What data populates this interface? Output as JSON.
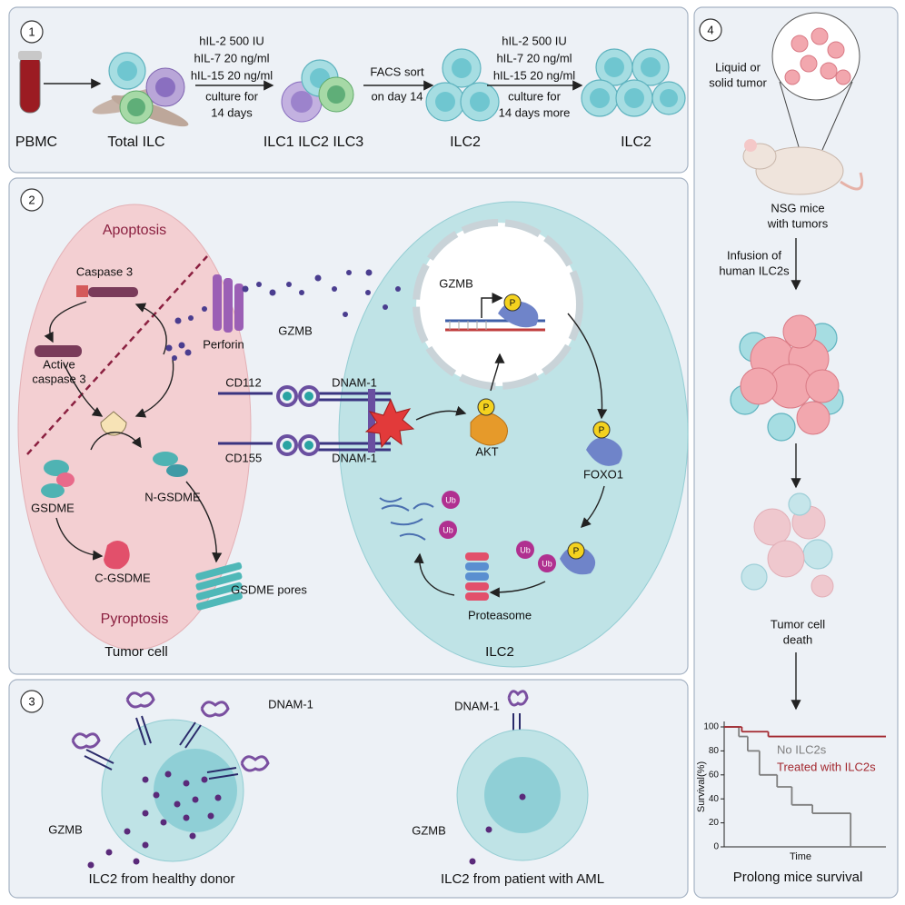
{
  "panel1": {
    "number": "1",
    "labels": [
      "PBMC",
      "Total ILC",
      "ILC1 ILC2 ILC3",
      "ILC2",
      "ILC2"
    ],
    "culture_step": [
      "hIL-2 500 IU",
      "hIL-7 20 ng/ml",
      "hIL-15 20 ng/ml",
      "culture for",
      "14 days"
    ],
    "sort_step": [
      "FACS sort",
      "on day 14"
    ],
    "expansion_step": [
      "hIL-2 500 IU",
      "hIL-7 20 ng/ml",
      "hIL-15 20 ng/ml",
      "culture for",
      "14 days more"
    ]
  },
  "panel2": {
    "number": "2",
    "apoptosis": "Apoptosis",
    "pyroptosis": "Pyroptosis",
    "caspase3": "Caspase 3",
    "active_caspase3": [
      "Active",
      "caspase 3"
    ],
    "gsdme": "GSDME",
    "n_gsdme": "N-GSDME",
    "c_gsdme": "C-GSDME",
    "gsdme_pores": "GSDME pores",
    "perforin": "Perforin",
    "gzmb": "GZMB",
    "cd112": "CD112",
    "cd155": "CD155",
    "dnam1": [
      "DNAM-1",
      "DNAM-1"
    ],
    "gzmb_gene": "GZMB",
    "akt": "AKT",
    "foxo1": "FOXO1",
    "proteasome": "Proteasome",
    "tumor_cell": "Tumor cell",
    "ilc2": "ILC2",
    "phospho": [
      "P",
      "P",
      "P",
      "P"
    ],
    "ubiquitin": [
      "Ub",
      "Ub",
      "Ub",
      "Ub"
    ]
  },
  "panel3": {
    "number": "3",
    "healthy": {
      "dnam1": "DNAM-1",
      "gzmb": "GZMB",
      "caption": "ILC2 from healthy donor"
    },
    "aml": {
      "dnam1": "DNAM-1",
      "gzmb": "GZMB",
      "caption": "ILC2 from patient with AML"
    }
  },
  "panel4": {
    "number": "4",
    "tumor": [
      "Liquid  or",
      "solid tumor"
    ],
    "mice": [
      "NSG mice",
      "with tumors"
    ],
    "infusion": [
      "Infusion of",
      "human ILC2s"
    ],
    "death": [
      "Tumor cell",
      "death"
    ],
    "conclusion": "Prolong mice survival"
  },
  "chart_data": {
    "type": "line",
    "step": true,
    "xlabel": "Time",
    "ylabel": "Survival(%)",
    "xlim": [
      0,
      11
    ],
    "ylim": [
      0,
      100
    ],
    "yticks": [
      0,
      20,
      40,
      60,
      80,
      100
    ],
    "series": [
      {
        "name": "No ILC2s",
        "color": "#7f7f7f",
        "x": [
          0,
          1,
          1.6,
          2.4,
          3.6,
          4.6,
          6,
          8.6
        ],
        "values": [
          100,
          92,
          80,
          60,
          50,
          35,
          28,
          0
        ]
      },
      {
        "name": "Treated with ILC2s",
        "color": "#a3282f",
        "x": [
          0,
          1.2,
          3
        ],
        "values": [
          100,
          96,
          92
        ]
      }
    ]
  }
}
